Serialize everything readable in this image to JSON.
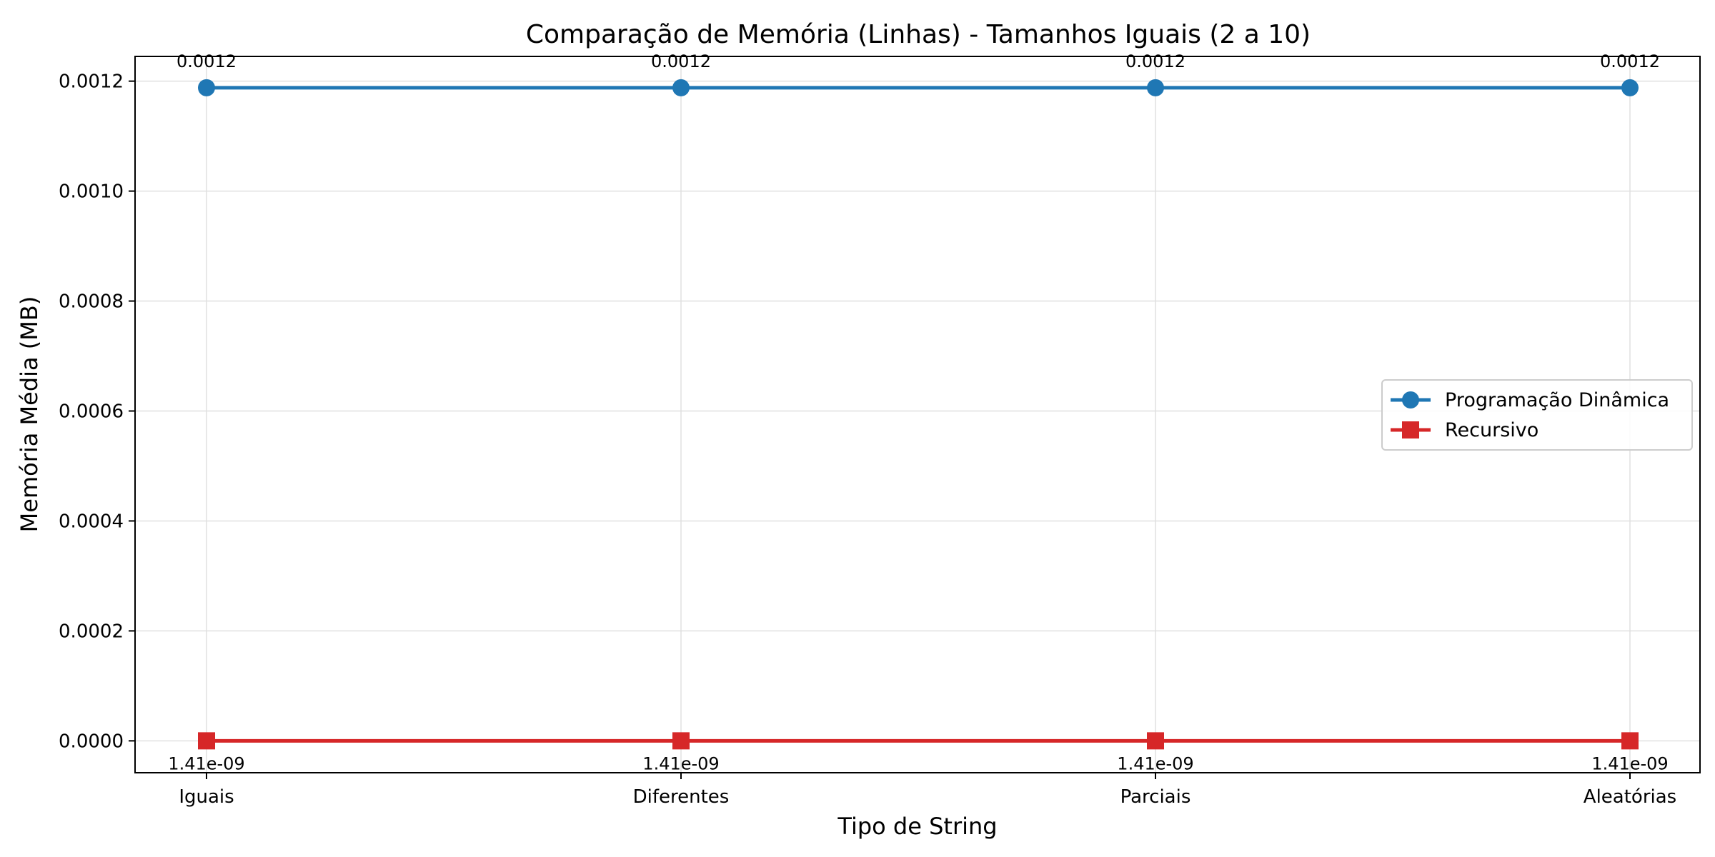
{
  "chart_data": {
    "type": "line",
    "title": "Comparação de Memória (Linhas) - Tamanhos Iguais (2 a 10)",
    "xlabel": "Tipo de String",
    "ylabel": "Memória Média (MB)",
    "categories": [
      "Iguais",
      "Diferentes",
      "Parciais",
      "Aleatórias"
    ],
    "ylim": [
      -5.8e-05,
      0.001245
    ],
    "yticks": [
      "0.0000",
      "0.0002",
      "0.0004",
      "0.0006",
      "0.0008",
      "0.0010",
      "0.0012"
    ],
    "grid": true,
    "legend_position": "center-right",
    "series": [
      {
        "name": "Programação Dinâmica",
        "values": [
          0.001188,
          0.001188,
          0.001188,
          0.001188
        ],
        "labels": [
          "0.0012",
          "0.0012",
          "0.0012",
          "0.0012"
        ],
        "color": "#1f77b4",
        "marker": "circle",
        "label_position": "above"
      },
      {
        "name": "Recursivo",
        "values": [
          1.41e-09,
          1.41e-09,
          1.41e-09,
          1.41e-09
        ],
        "labels": [
          "1.41e-09",
          "1.41e-09",
          "1.41e-09",
          "1.41e-09"
        ],
        "color": "#d62728",
        "marker": "square",
        "label_position": "below"
      }
    ]
  }
}
